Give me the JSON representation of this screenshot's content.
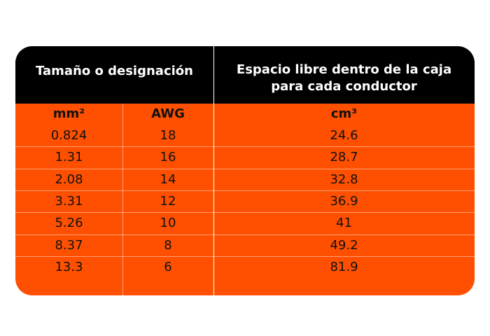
{
  "header": {
    "left": "Tamaño o designación",
    "right": [
      "Espacio libre dentro de la caja",
      "para cada conductor"
    ]
  },
  "table": {
    "columns": [
      "mm²",
      "AWG",
      "cm³"
    ],
    "rows": [
      [
        "0.824",
        "18",
        "24.6"
      ],
      [
        "1.31",
        "16",
        "28.7"
      ],
      [
        "2.08",
        "14",
        "32.8"
      ],
      [
        "3.31",
        "12",
        "36.9"
      ],
      [
        "5.26",
        "10",
        "41"
      ],
      [
        "8.37",
        "8",
        "49.2"
      ],
      [
        "13.3",
        "6",
        "81.9"
      ]
    ]
  }
}
